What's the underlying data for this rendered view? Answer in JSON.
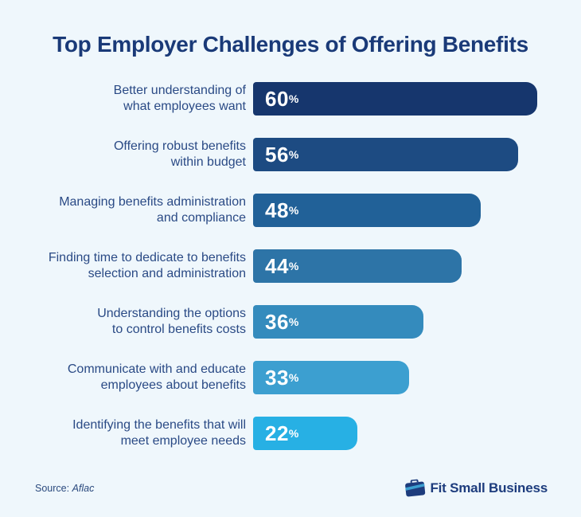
{
  "title": "Top Employer Challenges of Offering Benefits",
  "chart_data": {
    "type": "bar",
    "orientation": "horizontal",
    "title": "Top Employer Challenges of Offering Benefits",
    "categories": [
      "Better understanding of what employees want",
      "Offering robust benefits within budget",
      "Managing benefits administration and compliance",
      "Finding time to dedicate to benefits selection and administration",
      "Understanding the options to control benefits costs",
      "Communicate with and educate employees about benefits",
      "Identifying the benefits that will meet employee needs"
    ],
    "category_lines": [
      [
        "Better understanding of",
        "what employees want"
      ],
      [
        "Offering robust benefits",
        "within budget"
      ],
      [
        "Managing benefits administration",
        "and compliance"
      ],
      [
        "Finding time to dedicate to benefits",
        "selection and administration"
      ],
      [
        "Understanding the options",
        "to control benefits costs"
      ],
      [
        "Communicate with and educate",
        "employees about benefits"
      ],
      [
        "Identifying the benefits that will",
        "meet employee needs"
      ]
    ],
    "values": [
      60,
      56,
      48,
      44,
      36,
      33,
      22
    ],
    "unit": "%",
    "value_label_position": "inside-left",
    "xlim": [
      0,
      62
    ],
    "grid": false,
    "legend": "none",
    "bar_colors": [
      "#16366d",
      "#1d4b82",
      "#216198",
      "#2d74a7",
      "#348bbd",
      "#3c9fd0",
      "#27b0e4"
    ]
  },
  "footer": {
    "source_prefix": "Source:",
    "source_name": "Aflac",
    "brand_name": "Fit Small Business",
    "brand_icon": "briefcase-icon"
  },
  "colors": {
    "background": "#eff7fc",
    "title_text": "#1a3a78",
    "label_text": "#2a4a85",
    "value_text": "#ffffff",
    "brand_navy": "#1d3c7d",
    "brand_light_blue": "#3c9fd0"
  }
}
